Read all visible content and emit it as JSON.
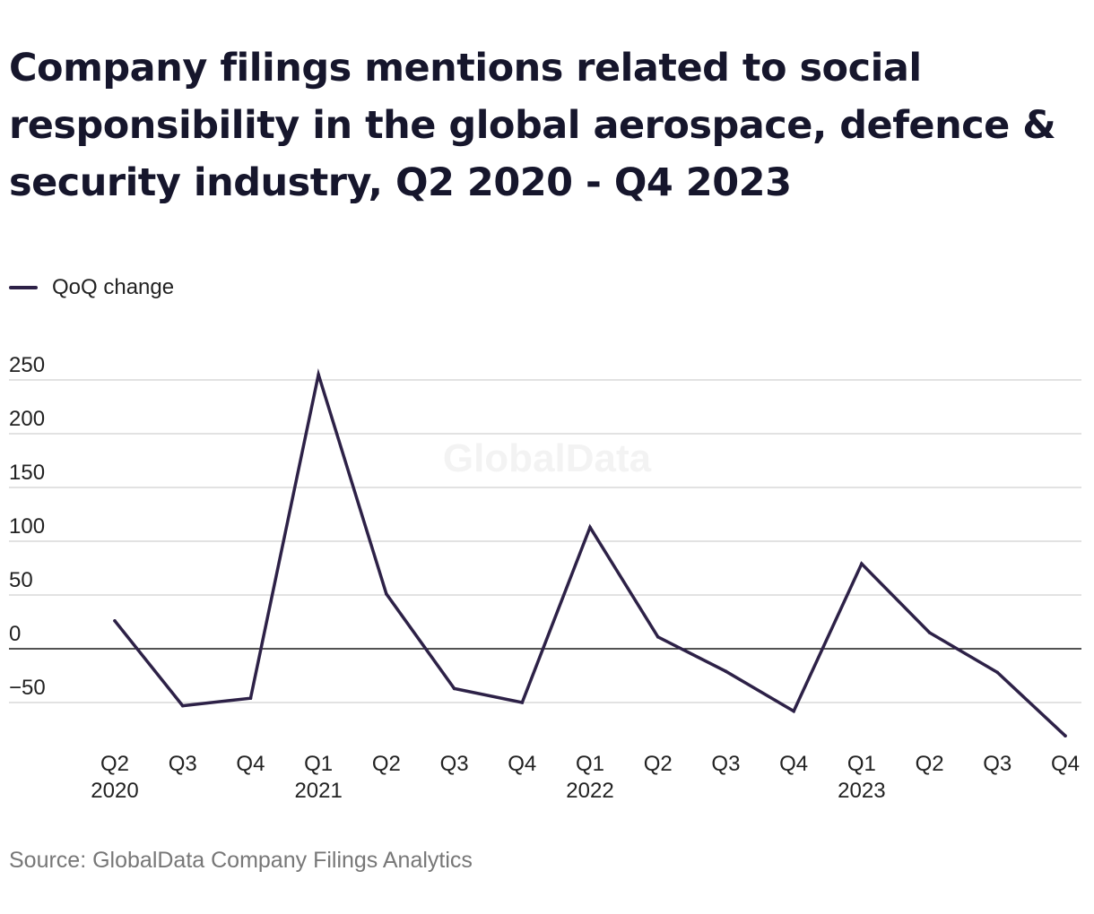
{
  "title": "Company filings mentions related to social responsibility in the global aerospace, defence & security industry, Q2 2020 - Q4 2023",
  "legend": {
    "label": "QoQ change"
  },
  "watermark": "GlobalData",
  "source": "Source: GlobalData Company Filings Analytics",
  "colors": {
    "line": "#2d2147",
    "grid": "#d9d9d9",
    "zero": "#1a1a1a",
    "watermark": "#f3f3f3"
  },
  "chart_data": {
    "type": "line",
    "title": "Company filings mentions related to social responsibility in the global aerospace, defence & security industry, Q2 2020 - Q4 2023",
    "xlabel": "",
    "ylabel": "",
    "ylim": [
      -50,
      250
    ],
    "yticks": [
      250,
      200,
      150,
      100,
      50,
      0,
      -50
    ],
    "ytick_labels": [
      "250",
      "200",
      "150",
      "100",
      "50",
      "0",
      "−50"
    ],
    "categories": [
      "Q2 2020",
      "Q3 2020",
      "Q4 2020",
      "Q1 2021",
      "Q2 2021",
      "Q3 2021",
      "Q4 2021",
      "Q1 2022",
      "Q2 2022",
      "Q3 2022",
      "Q4 2022",
      "Q1 2023",
      "Q2 2023",
      "Q3 2023",
      "Q4 2023"
    ],
    "x_tick_quarters": [
      "Q2",
      "Q3",
      "Q4",
      "Q1",
      "Q2",
      "Q3",
      "Q4",
      "Q1",
      "Q2",
      "Q3",
      "Q4",
      "Q1",
      "Q2",
      "Q3",
      "Q4"
    ],
    "x_tick_years": [
      "2020",
      "",
      "",
      "2021",
      "",
      "",
      "",
      "2022",
      "",
      "",
      "",
      "2023",
      "",
      "",
      ""
    ],
    "grid": true,
    "legend_position": "top-left",
    "series": [
      {
        "name": "QoQ change",
        "values": [
          26,
          -53,
          -46,
          255,
          51,
          -37,
          -50,
          113,
          11,
          -21,
          -58,
          79,
          15,
          -22,
          -81
        ]
      }
    ]
  }
}
